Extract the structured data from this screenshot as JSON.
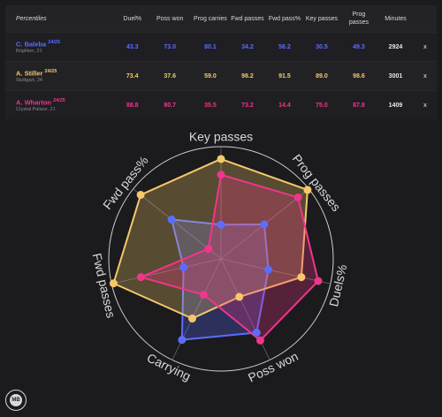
{
  "table": {
    "header_first": "Percentiles",
    "columns": [
      "Duel%",
      "Poss won",
      "Prog carries",
      "Fwd passes",
      "Fwd pass%",
      "Key passes",
      "Prog passes",
      "Minutes"
    ],
    "remove_label": "x"
  },
  "players": [
    {
      "name": "C. Baleba",
      "season": "24/25",
      "team": "Brighton, 21",
      "color": "#5b6dff",
      "values": [
        "43.3",
        "73.0",
        "80.1",
        "34.2",
        "56.2",
        "30.5",
        "49.3",
        "2924"
      ]
    },
    {
      "name": "A. Stiller",
      "season": "24/25",
      "team": "Stuttgart, 24",
      "color": "#f6c86a",
      "values": [
        "73.4",
        "37.6",
        "59.0",
        "98.2",
        "91.5",
        "89.0",
        "98.6",
        "3001"
      ]
    },
    {
      "name": "A. Wharton",
      "season": "24/25",
      "team": "Crystal Palace, 21",
      "color": "#f0368a",
      "values": [
        "88.8",
        "80.7",
        "35.5",
        "73.2",
        "14.4",
        "75.0",
        "87.8",
        "1409"
      ]
    }
  ],
  "chart_data": {
    "type": "radar",
    "axes": [
      "Key passes",
      "Prog passes",
      "Duels%",
      "Poss won",
      "Carrying",
      "Fwd passes",
      "Fwd pass%"
    ],
    "range": [
      0,
      100
    ],
    "grid": true,
    "series": [
      {
        "name": "C. Baleba",
        "color": "#5b6dff",
        "values": [
          30.5,
          49.3,
          43.3,
          73.0,
          80.1,
          34.2,
          56.2
        ]
      },
      {
        "name": "A. Stiller",
        "color": "#f6c86a",
        "values": [
          89.0,
          98.6,
          73.4,
          37.6,
          59.0,
          98.2,
          91.5
        ]
      },
      {
        "name": "A. Wharton",
        "color": "#f0368a",
        "values": [
          75.0,
          87.8,
          88.8,
          80.7,
          35.5,
          73.2,
          14.4
        ]
      }
    ]
  },
  "logo_text": "MB"
}
